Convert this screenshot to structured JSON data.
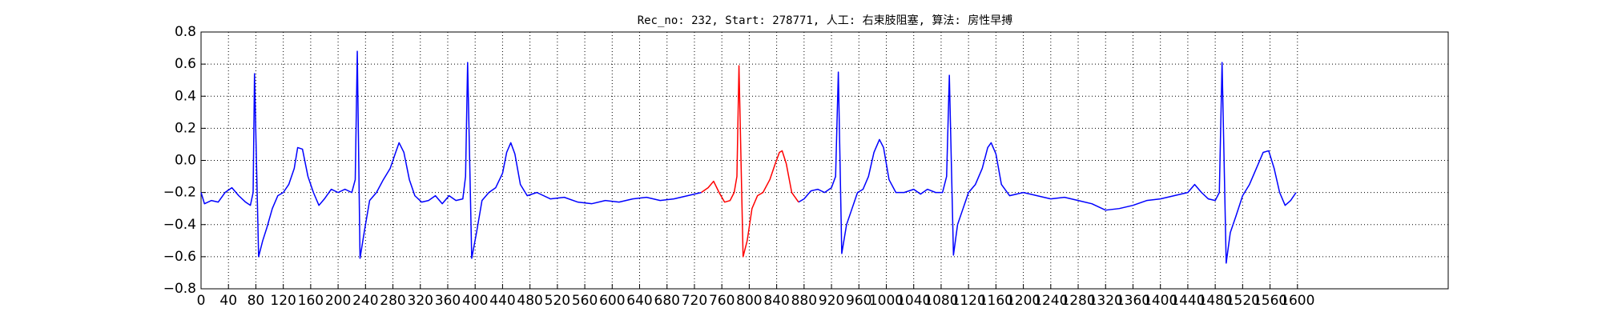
{
  "chart_data": {
    "type": "line",
    "title": "Rec_no: 232, Start: 278771, 人工: 右束肢阻塞, 算法: 房性早搏",
    "xlim": [
      0,
      1820
    ],
    "ylim": [
      -0.8,
      0.8
    ],
    "xticks": [
      0,
      40,
      80,
      120,
      160,
      200,
      240,
      280,
      320,
      360,
      400,
      440,
      480,
      520,
      560,
      600,
      640,
      680,
      720,
      760,
      800,
      840,
      880,
      920,
      960,
      1000,
      1040,
      1080,
      1120,
      1160,
      1200,
      1240,
      1280,
      1320,
      1360,
      1400,
      1440,
      1480,
      1520,
      1560,
      1600
    ],
    "yticks": [
      {
        "value": -0.8,
        "label": "−0.8"
      },
      {
        "value": -0.6,
        "label": "−0.6"
      },
      {
        "value": -0.4,
        "label": "−0.4"
      },
      {
        "value": -0.2,
        "label": "−0.2"
      },
      {
        "value": 0,
        "label": "0.0"
      },
      0.2,
      0.4,
      0.6,
      0.8
    ],
    "grid": true,
    "series": [
      {
        "color": "#0000ff",
        "x": [
          0,
          5,
          15,
          25,
          35,
          45,
          55,
          65,
          72,
          76,
          78,
          84,
          90,
          96,
          104,
          112,
          120,
          128,
          136,
          141,
          148,
          156,
          164,
          172,
          180,
          190,
          200,
          210,
          220,
          225,
          228,
          232,
          238,
          246,
          256,
          266,
          276,
          284,
          289,
          296,
          304,
          312,
          322,
          332,
          342,
          352,
          362,
          372,
          382,
          386,
          389,
          395,
          402,
          410,
          420,
          430,
          440,
          446,
          452,
          458,
          466,
          476,
          490,
          510,
          530,
          550,
          570,
          590,
          610,
          630,
          650,
          670,
          690,
          710,
          730,
          800,
          872,
          880,
          890,
          900,
          910,
          920,
          926,
          930,
          935,
          942,
          950,
          958,
          966,
          974,
          982,
          990,
          996,
          1004,
          1014,
          1026,
          1040,
          1050,
          1060,
          1072,
          1082,
          1088,
          1092,
          1098,
          1104,
          1112,
          1120,
          1130,
          1140,
          1148,
          1153,
          1160,
          1168,
          1180,
          1200,
          1220,
          1240,
          1260,
          1280,
          1300,
          1320,
          1340,
          1360,
          1380,
          1400,
          1420,
          1440,
          1450,
          1460,
          1470,
          1480,
          1486,
          1490,
          1496,
          1502,
          1510,
          1520,
          1530,
          1540,
          1550,
          1558,
          1566,
          1574,
          1582,
          1590,
          1598
        ],
        "values": [
          -0.2,
          -0.27,
          -0.25,
          -0.26,
          -0.2,
          -0.17,
          -0.22,
          -0.26,
          -0.28,
          -0.2,
          0.54,
          -0.6,
          -0.5,
          -0.42,
          -0.3,
          -0.22,
          -0.2,
          -0.15,
          -0.05,
          0.08,
          0.07,
          -0.1,
          -0.2,
          -0.28,
          -0.24,
          -0.18,
          -0.2,
          -0.18,
          -0.2,
          -0.12,
          0.68,
          -0.61,
          -0.45,
          -0.25,
          -0.2,
          -0.12,
          -0.05,
          0.05,
          0.11,
          0.05,
          -0.12,
          -0.22,
          -0.26,
          -0.25,
          -0.22,
          -0.27,
          -0.22,
          -0.25,
          -0.24,
          -0.1,
          0.61,
          -0.61,
          -0.45,
          -0.25,
          -0.2,
          -0.17,
          -0.08,
          0.05,
          0.11,
          0.04,
          -0.15,
          -0.22,
          -0.2,
          -0.24,
          -0.23,
          -0.26,
          -0.27,
          -0.25,
          -0.26,
          -0.24,
          -0.23,
          -0.25,
          -0.24,
          -0.22,
          -0.2,
          null,
          -0.26,
          -0.24,
          -0.19,
          -0.18,
          -0.2,
          -0.17,
          -0.1,
          0.55,
          -0.58,
          -0.4,
          -0.3,
          -0.2,
          -0.18,
          -0.1,
          0.05,
          0.13,
          0.08,
          -0.12,
          -0.2,
          -0.2,
          -0.18,
          -0.21,
          -0.18,
          -0.2,
          -0.2,
          -0.1,
          0.53,
          -0.59,
          -0.4,
          -0.3,
          -0.2,
          -0.15,
          -0.05,
          0.08,
          0.11,
          0.04,
          -0.15,
          -0.22,
          -0.2,
          -0.22,
          -0.24,
          -0.23,
          -0.25,
          -0.27,
          -0.31,
          -0.3,
          -0.28,
          -0.25,
          -0.24,
          -0.22,
          -0.2,
          -0.15,
          -0.2,
          -0.24,
          -0.25,
          -0.2,
          0.61,
          -0.64,
          -0.45,
          -0.35,
          -0.22,
          -0.15,
          -0.05,
          0.05,
          0.06,
          -0.05,
          -0.2,
          -0.28,
          -0.25,
          -0.2
        ]
      },
      {
        "color": "#ff0000",
        "x": [
          730,
          740,
          748,
          756,
          764,
          772,
          778,
          782,
          785,
          791,
          797,
          804,
          812,
          820,
          830,
          838,
          844,
          848,
          854,
          862,
          872
        ],
        "values": [
          -0.2,
          -0.17,
          -0.13,
          -0.2,
          -0.26,
          -0.25,
          -0.2,
          -0.1,
          0.59,
          -0.6,
          -0.5,
          -0.3,
          -0.22,
          -0.2,
          -0.12,
          -0.02,
          0.05,
          0.06,
          -0.02,
          -0.2,
          -0.26
        ]
      }
    ]
  }
}
